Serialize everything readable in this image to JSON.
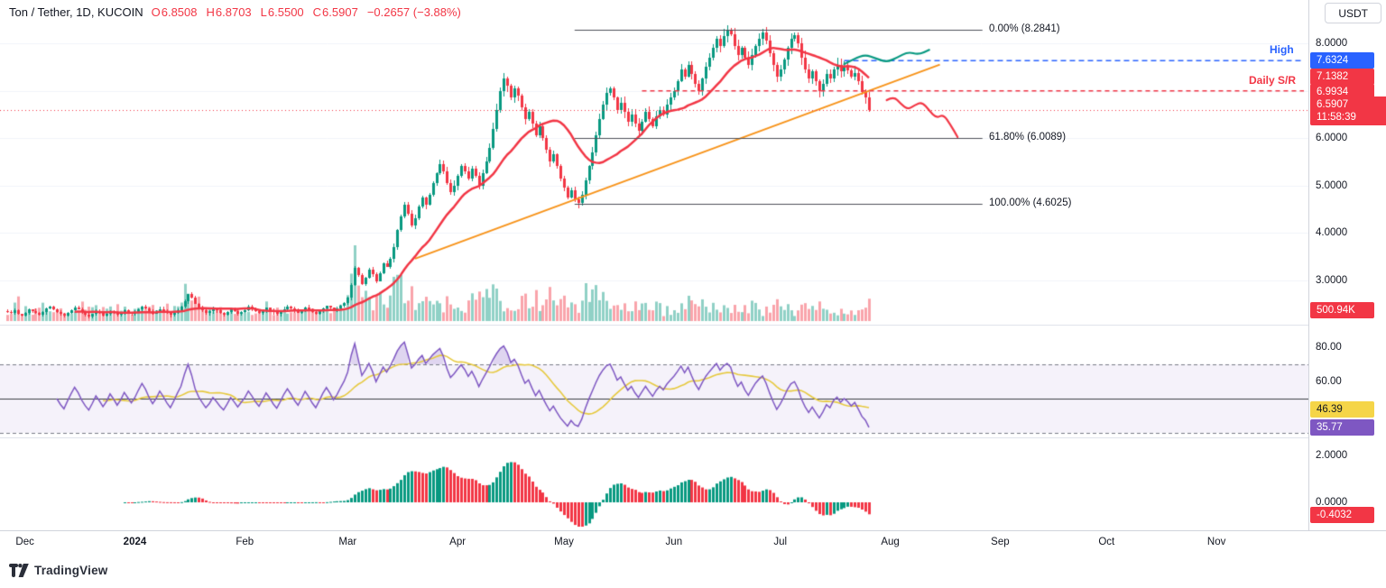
{
  "header": {
    "title": "Ton / Tether, 1D, KUCOIN",
    "ohlc": [
      {
        "label": "O",
        "value": "6.8508"
      },
      {
        "label": "H",
        "value": "6.8703"
      },
      {
        "label": "L",
        "value": "6.5500"
      },
      {
        "label": "C",
        "value": "6.5907"
      }
    ],
    "change": "−0.2657 (−3.88%)",
    "currency_button": "USDT"
  },
  "footer": {
    "logo_text": "TradingView"
  },
  "colors": {
    "up": "#089981",
    "down": "#f23645",
    "ma": "#f23645",
    "trendline": "#f7931a",
    "high_line": "#2962ff",
    "sr_line": "#f23645",
    "rsi": "#7e57c2",
    "rsi_ma": "#e6c93f",
    "fib_line": "#4c4f59",
    "axis_text": "#131722"
  },
  "chart_data": {
    "type": "candlestick",
    "title": "Ton / Tether, 1D, KUCOIN",
    "interval": "1D",
    "closes": [
      2.33,
      2.3,
      2.36,
      2.28,
      2.25,
      2.31,
      2.38,
      2.35,
      2.3,
      2.26,
      2.32,
      2.4,
      2.44,
      2.38,
      2.33,
      2.28,
      2.24,
      2.3,
      2.36,
      2.42,
      2.38,
      2.32,
      2.27,
      2.23,
      2.28,
      2.34,
      2.3,
      2.25,
      2.29,
      2.35,
      2.31,
      2.26,
      2.3,
      2.36,
      2.32,
      2.28,
      2.32,
      2.38,
      2.44,
      2.4,
      2.34,
      2.29,
      2.33,
      2.39,
      2.35,
      2.3,
      2.26,
      2.31,
      2.37,
      2.43,
      2.56,
      2.7,
      2.62,
      2.5,
      2.42,
      2.36,
      2.3,
      2.34,
      2.4,
      2.36,
      2.31,
      2.27,
      2.32,
      2.38,
      2.34,
      2.29,
      2.33,
      2.37,
      2.43,
      2.39,
      2.34,
      2.3,
      2.35,
      2.41,
      2.37,
      2.32,
      2.28,
      2.33,
      2.39,
      2.44,
      2.4,
      2.35,
      2.31,
      2.36,
      2.42,
      2.38,
      2.33,
      2.29,
      2.34,
      2.4,
      2.45,
      2.41,
      2.36,
      2.4,
      2.46,
      2.52,
      2.62,
      2.9,
      3.25,
      3.1,
      2.92,
      3.05,
      3.22,
      3.12,
      2.98,
      3.15,
      3.35,
      3.28,
      3.45,
      3.7,
      4.05,
      4.35,
      4.6,
      4.4,
      4.15,
      4.3,
      4.55,
      4.75,
      4.6,
      4.8,
      5.05,
      5.25,
      5.45,
      5.3,
      5.05,
      4.85,
      5.0,
      5.2,
      5.4,
      5.3,
      5.15,
      5.35,
      5.2,
      5.0,
      5.25,
      5.5,
      5.8,
      6.2,
      6.6,
      7.0,
      7.25,
      7.1,
      6.85,
      7.05,
      6.9,
      6.65,
      6.4,
      6.55,
      6.3,
      6.05,
      6.25,
      6.0,
      5.75,
      5.5,
      5.65,
      5.4,
      5.15,
      4.95,
      4.75,
      4.9,
      4.7,
      4.62,
      4.8,
      5.1,
      5.4,
      5.7,
      6.05,
      6.4,
      6.7,
      6.95,
      7.05,
      6.85,
      6.6,
      6.75,
      6.55,
      6.35,
      6.5,
      6.3,
      6.15,
      6.35,
      6.55,
      6.4,
      6.25,
      6.45,
      6.6,
      6.5,
      6.7,
      6.85,
      7.0,
      7.2,
      7.45,
      7.3,
      7.55,
      7.35,
      7.15,
      7.0,
      7.25,
      7.5,
      7.7,
      7.9,
      8.1,
      7.95,
      8.15,
      8.28,
      8.2,
      7.95,
      7.75,
      7.9,
      7.7,
      7.55,
      7.75,
      7.95,
      8.1,
      8.22,
      8.05,
      7.8,
      7.55,
      7.3,
      7.45,
      7.65,
      7.9,
      8.1,
      8.18,
      8.0,
      7.7,
      7.45,
      7.25,
      7.4,
      7.2,
      7.0,
      7.15,
      7.35,
      7.25,
      7.45,
      7.55,
      7.4,
      7.5,
      7.42,
      7.3,
      7.38,
      7.2,
      6.98,
      6.85,
      6.59
    ],
    "sma_period": 20,
    "price_axis_labels": [
      {
        "text": "8.0000",
        "price": 8
      },
      {
        "text": "6.0000",
        "price": 6
      },
      {
        "text": "5.0000",
        "price": 5
      },
      {
        "text": "4.0000",
        "price": 4
      },
      {
        "text": "3.0000",
        "price": 3
      }
    ],
    "x_axis": {
      "labels": [
        {
          "label": "Dec",
          "day": 5
        },
        {
          "label": "2024",
          "day": 36,
          "bold": true
        },
        {
          "label": "Feb",
          "day": 67
        },
        {
          "label": "Mar",
          "day": 96
        },
        {
          "label": "Apr",
          "day": 127
        },
        {
          "label": "May",
          "day": 157
        },
        {
          "label": "Jun",
          "day": 188
        },
        {
          "label": "Jul",
          "day": 218
        },
        {
          "label": "Aug",
          "day": 249
        },
        {
          "label": "Sep",
          "day": 280
        },
        {
          "label": "Oct",
          "day": 310
        },
        {
          "label": "Nov",
          "day": 341
        }
      ]
    },
    "levels": {
      "high": {
        "label": "High",
        "tag": "7.6324",
        "price": 7.6324,
        "day_start": 236
      },
      "daily_sr": {
        "label": "Daily S/R",
        "tag": "6.9934",
        "price": 6.9934,
        "day_start": 179
      },
      "ma_tag": {
        "tag": "7.1382",
        "price": 7.1382
      },
      "last": {
        "tag": "6.5907",
        "time": "11:58:39",
        "price": 6.5907
      },
      "volume_tag": "500.94K"
    },
    "fib": {
      "day_start": 160,
      "day_end": 275,
      "levels": [
        {
          "label": "0.00% (8.2841)",
          "price": 8.2841
        },
        {
          "label": "61.80% (6.0089)",
          "price": 6.0089
        },
        {
          "label": "100.00% (4.6025)",
          "price": 4.6025
        }
      ]
    },
    "trendline": {
      "from": {
        "day": 115,
        "price": 3.45
      },
      "to": {
        "day": 263,
        "price": 7.55
      }
    },
    "projections": {
      "bull": [
        [
          236,
          7.56
        ],
        [
          239,
          7.68
        ],
        [
          242,
          7.76
        ],
        [
          245,
          7.68
        ],
        [
          248,
          7.6
        ],
        [
          251,
          7.7
        ],
        [
          254,
          7.82
        ],
        [
          257,
          7.76
        ],
        [
          260,
          7.86
        ]
      ],
      "bear": [
        [
          248,
          6.8
        ],
        [
          250,
          6.88
        ],
        [
          252,
          6.72
        ],
        [
          254,
          6.6
        ],
        [
          256,
          6.7
        ],
        [
          258,
          6.76
        ],
        [
          260,
          6.58
        ],
        [
          262,
          6.42
        ],
        [
          264,
          6.5
        ],
        [
          266,
          6.28
        ],
        [
          268,
          6.02
        ]
      ]
    },
    "rsi_panel": {
      "period": 14,
      "ma_period": 14,
      "axis_labels": [
        {
          "text": "80.00",
          "value": 80
        },
        {
          "text": "60.00",
          "value": 60
        }
      ],
      "bands": {
        "upper": 70,
        "middle": 50,
        "lower": 30
      },
      "tags": [
        {
          "text": "46.39",
          "value": 46.39,
          "bg": "#f5d548",
          "fg": "#131722"
        },
        {
          "text": "35.77",
          "value": 35.77,
          "bg": "#7e57c2",
          "fg": "#ffffff"
        }
      ]
    },
    "ao_panel": {
      "fast": 5,
      "slow": 34,
      "axis_labels": [
        {
          "text": "2.0000",
          "value": 2
        },
        {
          "text": "0.0000",
          "value": 0
        }
      ],
      "tag": {
        "text": "-0.4032",
        "value": -0.4032,
        "bg": "#f23645",
        "fg": "#ffffff"
      }
    }
  }
}
